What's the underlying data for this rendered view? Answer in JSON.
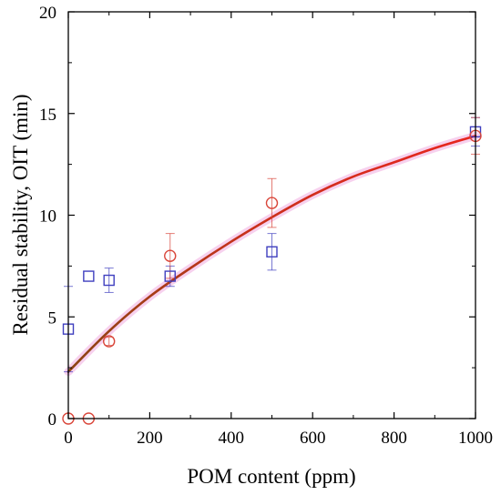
{
  "chart_data": {
    "type": "scatter",
    "xlabel": "POM content (ppm)",
    "ylabel": "Residual stability, OIT (min)",
    "xlim": [
      0,
      1000
    ],
    "ylim": [
      0,
      20
    ],
    "xticks": [
      0,
      200,
      400,
      600,
      800,
      1000
    ],
    "yticks": [
      0,
      5,
      10,
      15,
      20
    ],
    "grid": false,
    "series": [
      {
        "marker": "square",
        "color": "#3f3fbf",
        "points": [
          {
            "x": 0,
            "y": 4.4,
            "err": 2.1
          },
          {
            "x": 50,
            "y": 7.0,
            "err": 0
          },
          {
            "x": 100,
            "y": 6.8,
            "err": 0.6
          },
          {
            "x": 250,
            "y": 7.0,
            "err": 0.5
          },
          {
            "x": 500,
            "y": 8.2,
            "err": 0.9
          },
          {
            "x": 1000,
            "y": 14.1,
            "err": 0.7
          }
        ]
      },
      {
        "marker": "circle",
        "color": "#d9463a",
        "points": [
          {
            "x": 0,
            "y": 0.0,
            "err": 0
          },
          {
            "x": 50,
            "y": 0.0,
            "err": 0
          },
          {
            "x": 100,
            "y": 3.8,
            "err": 0.2
          },
          {
            "x": 250,
            "y": 8.0,
            "err": 1.1
          },
          {
            "x": 500,
            "y": 10.6,
            "err": 1.2
          },
          {
            "x": 1000,
            "y": 13.9,
            "err": 0.9
          }
        ]
      }
    ],
    "fit": {
      "type": "line",
      "points": [
        {
          "x": 0,
          "y": 2.3
        },
        {
          "x": 100,
          "y": 4.3
        },
        {
          "x": 200,
          "y": 6.0
        },
        {
          "x": 300,
          "y": 7.4
        },
        {
          "x": 400,
          "y": 8.7
        },
        {
          "x": 500,
          "y": 9.9
        },
        {
          "x": 600,
          "y": 11.0
        },
        {
          "x": 700,
          "y": 11.9
        },
        {
          "x": 800,
          "y": 12.6
        },
        {
          "x": 900,
          "y": 13.3
        },
        {
          "x": 1000,
          "y": 13.9
        }
      ],
      "colors": [
        "#8b4513",
        "#e8251f"
      ],
      "shadow_color": "#f4c2e8"
    }
  }
}
